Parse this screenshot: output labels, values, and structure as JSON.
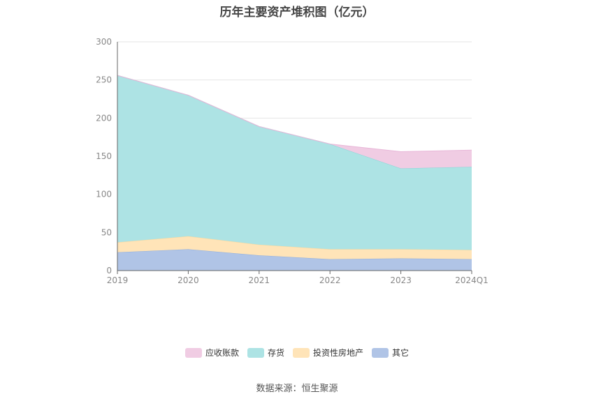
{
  "chart_data": {
    "type": "area",
    "stacked": true,
    "title": "历年主要资产堆积图（亿元）",
    "categories": [
      "2019",
      "2020",
      "2021",
      "2022",
      "2023",
      "2024Q1"
    ],
    "ylim": [
      0,
      300
    ],
    "yticks": [
      0,
      50,
      100,
      150,
      200,
      250,
      300
    ],
    "grid": true,
    "legend_position": "bottom",
    "series": [
      {
        "name": "其它",
        "color": "#8eaede",
        "fill": "#b0c4e6",
        "values": [
          24,
          28,
          20,
          15,
          16,
          15
        ]
      },
      {
        "name": "投资性房地产",
        "color": "#ffd89a",
        "fill": "#ffe4b8",
        "values": [
          13,
          17,
          14,
          13,
          12,
          12
        ]
      },
      {
        "name": "存货",
        "color": "#84d6d8",
        "fill": "#ade3e4",
        "values": [
          219,
          185,
          155,
          138,
          106,
          109
        ]
      },
      {
        "name": "应收账款",
        "color": "#e8b6d8",
        "fill": "#f0cce3",
        "values": [
          0,
          0,
          0,
          0,
          22,
          22
        ]
      }
    ],
    "legend_order": [
      "应收账款",
      "存货",
      "投资性房地产",
      "其它"
    ]
  },
  "source": "数据来源：恒生聚源"
}
